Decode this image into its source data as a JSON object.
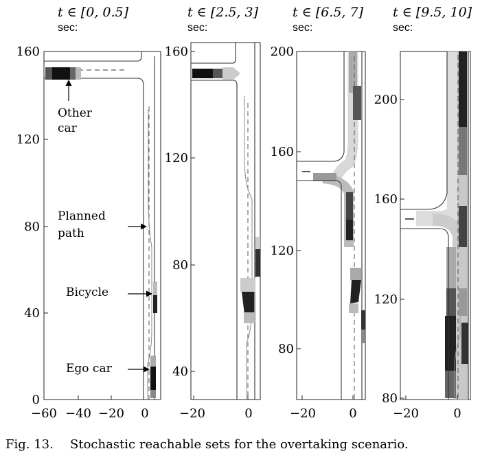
{
  "figure": {
    "caption_label": "Fig. 13.",
    "caption_text": "Stochastic reachable sets for the overtaking scenario.",
    "annotations": {
      "other_car_1": "Other",
      "other_car_2": "car",
      "planned_path_1": "Planned",
      "planned_path_2": "path",
      "bicycle": "Bicycle",
      "ego_car": "Ego car"
    }
  },
  "chart_data": [
    {
      "type": "heatmap",
      "title_math": "t ∈ [0, 0.5]",
      "title_unit": "sec:",
      "x_ticks": [
        -60,
        -40,
        -20,
        0
      ],
      "y_ticks": [
        0,
        40,
        80,
        120,
        160
      ],
      "xlim": [
        -62,
        5
      ],
      "ylim": [
        0,
        165
      ]
    },
    {
      "type": "heatmap",
      "title_math": "t ∈ [2.5, 3]",
      "title_unit": "sec:",
      "x_ticks": [
        -20,
        0
      ],
      "y_ticks": [
        40,
        80,
        120,
        160
      ],
      "xlim": [
        -22,
        5
      ],
      "ylim": [
        28,
        165
      ]
    },
    {
      "type": "heatmap",
      "title_math": "t ∈ [6.5, 7]",
      "title_unit": "sec:",
      "x_ticks": [
        -20,
        0
      ],
      "y_ticks": [
        80,
        120,
        160,
        200
      ],
      "xlim": [
        -22,
        5
      ],
      "ylim": [
        60,
        200
      ]
    },
    {
      "type": "heatmap",
      "title_math": "t ∈ [9.5, 10]",
      "title_unit": "sec:",
      "x_ticks": [
        -20,
        0
      ],
      "y_ticks": [
        80,
        120,
        160,
        200
      ],
      "xlim": [
        -22,
        5
      ],
      "ylim": [
        80,
        220
      ]
    }
  ]
}
